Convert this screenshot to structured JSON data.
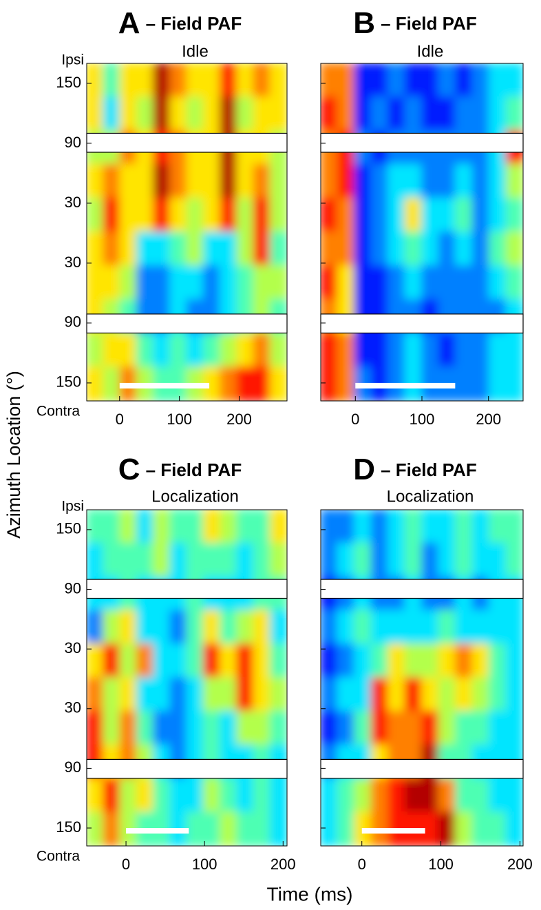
{
  "ylabel": "Azimuth Location (°)",
  "xlabel": "Time (ms)",
  "chart_data": [
    {
      "type": "heatmap",
      "panel_label": "A",
      "title": "– Field PAF",
      "subtitle": "Idle",
      "ytop_label": "Ipsi",
      "ybottom_label": "Contra",
      "xlim": [
        -55,
        280
      ],
      "xticks": [
        0,
        100,
        200
      ],
      "ylim": [
        -168,
        170
      ],
      "yticks": [
        150,
        90,
        30,
        {
          "value": -30,
          "label": "30"
        },
        {
          "value": -90,
          "label": "90"
        },
        {
          "value": -150,
          "label": "150"
        }
      ],
      "scale_bar": [
        0,
        150
      ],
      "zlim": [
        0,
        1
      ],
      "z": [
        [
          0.6,
          0.4,
          0.65,
          0.6,
          0.9,
          0.7,
          0.6,
          0.6,
          0.85,
          0.6,
          0.7,
          0.6
        ],
        [
          0.6,
          0.35,
          0.6,
          0.55,
          0.95,
          0.65,
          0.55,
          0.6,
          0.9,
          0.55,
          0.65,
          0.6
        ],
        [
          0.5,
          0.55,
          0.7,
          0.65,
          0.8,
          0.7,
          0.6,
          0.65,
          0.9,
          0.6,
          0.6,
          0.55
        ],
        [
          0.6,
          0.7,
          0.65,
          0.6,
          0.9,
          0.75,
          0.65,
          0.6,
          0.9,
          0.6,
          0.7,
          0.55
        ],
        [
          0.55,
          0.85,
          0.6,
          0.6,
          0.8,
          0.6,
          0.55,
          0.6,
          0.8,
          0.55,
          0.85,
          0.5
        ],
        [
          0.6,
          0.7,
          0.65,
          0.35,
          0.3,
          0.4,
          0.5,
          0.3,
          0.35,
          0.5,
          0.8,
          0.45
        ],
        [
          0.65,
          0.6,
          0.5,
          0.25,
          0.2,
          0.35,
          0.3,
          0.2,
          0.3,
          0.45,
          0.55,
          0.5
        ],
        [
          0.6,
          0.55,
          0.45,
          0.2,
          0.25,
          0.3,
          0.2,
          0.25,
          0.3,
          0.4,
          0.5,
          0.45
        ],
        [
          0.55,
          0.6,
          0.65,
          0.4,
          0.3,
          0.4,
          0.35,
          0.4,
          0.5,
          0.6,
          0.7,
          0.55
        ],
        [
          0.6,
          0.5,
          0.7,
          0.55,
          0.45,
          0.4,
          0.5,
          0.6,
          0.7,
          0.85,
          0.8,
          0.6
        ]
      ]
    },
    {
      "type": "heatmap",
      "panel_label": "B",
      "title": "– Field PAF",
      "subtitle": "Idle",
      "xlim": [
        -52,
        252
      ],
      "xticks": [
        0,
        100,
        200
      ],
      "ylim": [
        -168,
        170
      ],
      "yticks": [
        150,
        90,
        30,
        -30,
        -90,
        -150
      ],
      "scale_bar": [
        0,
        150
      ],
      "zlim": [
        0,
        1
      ],
      "z": [
        [
          0.75,
          0.7,
          0.15,
          0.15,
          0.2,
          0.15,
          0.15,
          0.2,
          0.15,
          0.2,
          0.3,
          0.35
        ],
        [
          0.8,
          0.75,
          0.15,
          0.2,
          0.15,
          0.2,
          0.15,
          0.15,
          0.2,
          0.25,
          0.35,
          0.45
        ],
        [
          0.7,
          0.85,
          0.2,
          0.15,
          0.2,
          0.25,
          0.2,
          0.2,
          0.2,
          0.2,
          0.3,
          0.8
        ],
        [
          0.75,
          0.8,
          0.15,
          0.2,
          0.3,
          0.35,
          0.2,
          0.25,
          0.3,
          0.2,
          0.35,
          0.5
        ],
        [
          0.8,
          0.75,
          0.15,
          0.2,
          0.35,
          0.6,
          0.3,
          0.3,
          0.4,
          0.25,
          0.3,
          0.4
        ],
        [
          0.75,
          0.7,
          0.15,
          0.2,
          0.3,
          0.45,
          0.3,
          0.25,
          0.35,
          0.2,
          0.45,
          0.55
        ],
        [
          0.8,
          0.65,
          0.15,
          0.15,
          0.25,
          0.3,
          0.2,
          0.2,
          0.25,
          0.2,
          0.3,
          0.4
        ],
        [
          0.7,
          0.6,
          0.15,
          0.15,
          0.2,
          0.2,
          0.15,
          0.2,
          0.2,
          0.2,
          0.25,
          0.3
        ],
        [
          0.85,
          0.7,
          0.15,
          0.15,
          0.2,
          0.3,
          0.2,
          0.15,
          0.2,
          0.25,
          0.3,
          0.35
        ],
        [
          0.8,
          0.75,
          0.2,
          0.15,
          0.2,
          0.35,
          0.25,
          0.2,
          0.2,
          0.25,
          0.3,
          0.35
        ]
      ]
    },
    {
      "type": "heatmap",
      "panel_label": "C",
      "title": "– Field PAF",
      "subtitle": "Localization",
      "ytop_label": "Ipsi",
      "ybottom_label": "Contra",
      "xlim": [
        -50,
        205
      ],
      "xticks": [
        0,
        100,
        200
      ],
      "ylim": [
        -168,
        170
      ],
      "yticks": [
        150,
        90,
        30,
        {
          "value": -30,
          "label": "30"
        },
        {
          "value": -90,
          "label": "90"
        },
        {
          "value": -150,
          "label": "150"
        }
      ],
      "scale_bar": [
        0,
        80
      ],
      "zlim": [
        0,
        1
      ],
      "z": [
        [
          0.4,
          0.45,
          0.5,
          0.35,
          0.55,
          0.4,
          0.45,
          0.6,
          0.5,
          0.4,
          0.45,
          0.65
        ],
        [
          0.35,
          0.4,
          0.45,
          0.4,
          0.5,
          0.35,
          0.4,
          0.45,
          0.4,
          0.35,
          0.4,
          0.55
        ],
        [
          0.3,
          0.35,
          0.4,
          0.3,
          0.35,
          0.3,
          0.4,
          0.35,
          0.3,
          0.35,
          0.4,
          0.45
        ],
        [
          0.25,
          0.5,
          0.6,
          0.3,
          0.35,
          0.25,
          0.4,
          0.6,
          0.45,
          0.5,
          0.6,
          0.35
        ],
        [
          0.6,
          0.8,
          0.55,
          0.7,
          0.35,
          0.3,
          0.45,
          0.85,
          0.6,
          0.85,
          0.65,
          0.4
        ],
        [
          0.7,
          0.5,
          0.65,
          0.35,
          0.3,
          0.25,
          0.3,
          0.55,
          0.5,
          0.8,
          0.6,
          0.55
        ],
        [
          0.8,
          0.55,
          0.75,
          0.45,
          0.25,
          0.2,
          0.3,
          0.4,
          0.35,
          0.5,
          0.55,
          0.4
        ],
        [
          0.85,
          0.6,
          0.7,
          0.55,
          0.3,
          0.25,
          0.3,
          0.4,
          0.35,
          0.3,
          0.45,
          0.35
        ],
        [
          0.6,
          0.8,
          0.5,
          0.6,
          0.4,
          0.35,
          0.35,
          0.5,
          0.45,
          0.3,
          0.4,
          0.3
        ],
        [
          0.5,
          0.7,
          0.55,
          0.45,
          0.4,
          0.35,
          0.4,
          0.45,
          0.5,
          0.4,
          0.45,
          0.35
        ]
      ]
    },
    {
      "type": "heatmap",
      "panel_label": "D",
      "title": "– Field PAF",
      "subtitle": "Localization",
      "xlim": [
        -52,
        204
      ],
      "xticks": [
        0,
        100,
        200
      ],
      "ylim": [
        -168,
        170
      ],
      "yticks": [
        150,
        90,
        30,
        -30,
        -90,
        -150
      ],
      "scale_bar": [
        0,
        80
      ],
      "zlim": [
        0,
        1
      ],
      "z": [
        [
          0.2,
          0.25,
          0.35,
          0.2,
          0.3,
          0.45,
          0.3,
          0.35,
          0.4,
          0.3,
          0.4,
          0.45
        ],
        [
          0.2,
          0.3,
          0.4,
          0.25,
          0.35,
          0.4,
          0.25,
          0.3,
          0.4,
          0.35,
          0.3,
          0.4
        ],
        [
          0.15,
          0.2,
          0.3,
          0.2,
          0.25,
          0.3,
          0.2,
          0.25,
          0.3,
          0.25,
          0.3,
          0.35
        ],
        [
          0.2,
          0.3,
          0.4,
          0.3,
          0.3,
          0.35,
          0.3,
          0.4,
          0.35,
          0.3,
          0.35,
          0.3
        ],
        [
          0.15,
          0.25,
          0.35,
          0.45,
          0.6,
          0.5,
          0.55,
          0.6,
          0.75,
          0.65,
          0.45,
          0.3
        ],
        [
          0.2,
          0.3,
          0.35,
          0.85,
          0.65,
          0.85,
          0.6,
          0.55,
          0.6,
          0.55,
          0.4,
          0.35
        ],
        [
          0.15,
          0.25,
          0.4,
          0.8,
          0.75,
          0.7,
          0.8,
          0.5,
          0.45,
          0.4,
          0.35,
          0.3
        ],
        [
          0.2,
          0.3,
          0.35,
          0.6,
          0.7,
          0.75,
          0.9,
          0.45,
          0.4,
          0.35,
          0.3,
          0.35
        ],
        [
          0.3,
          0.4,
          0.55,
          0.7,
          0.85,
          0.95,
          0.9,
          0.7,
          0.45,
          0.4,
          0.35,
          0.3
        ],
        [
          0.35,
          0.45,
          0.6,
          0.7,
          0.8,
          0.85,
          0.85,
          0.9,
          0.5,
          0.45,
          0.4,
          0.35
        ]
      ]
    }
  ]
}
